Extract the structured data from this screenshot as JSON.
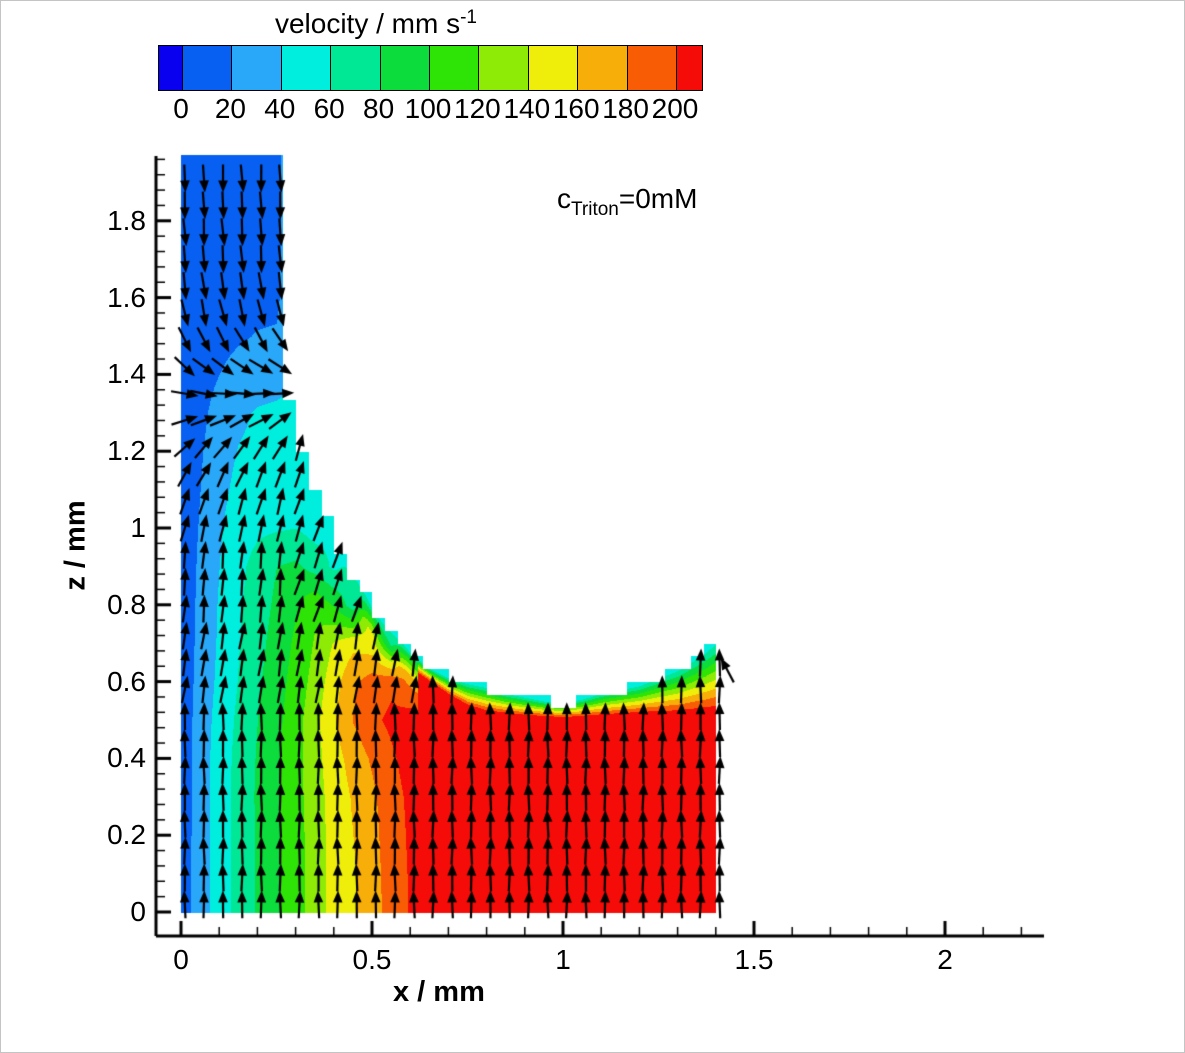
{
  "colorbar": {
    "title_main": "velocity / mm s",
    "title_sup": "-1",
    "tick_labels": [
      "0",
      "20",
      "40",
      "60",
      "80",
      "100",
      "120",
      "140",
      "160",
      "180",
      "200"
    ],
    "levels": [
      0,
      20,
      40,
      60,
      80,
      100,
      120,
      140,
      160,
      180,
      200
    ],
    "band_colors": [
      "#0a00f0",
      "#0760f2",
      "#29a7f8",
      "#00eede",
      "#00e795",
      "#0cdc3c",
      "#2ee407",
      "#8eeb05",
      "#eeee0a",
      "#f8ae08",
      "#f85d05",
      "#f50c08"
    ]
  },
  "axes": {
    "x_label": "x / mm",
    "y_label": "z / mm",
    "x_ticks": [
      {
        "v": 0,
        "label": "0"
      },
      {
        "v": 0.5,
        "label": "0.5"
      },
      {
        "v": 1,
        "label": "1"
      },
      {
        "v": 1.5,
        "label": "1.5"
      },
      {
        "v": 2,
        "label": "2"
      }
    ],
    "y_ticks": [
      {
        "v": 0,
        "label": "0"
      },
      {
        "v": 0.2,
        "label": "0.2"
      },
      {
        "v": 0.4,
        "label": "0.4"
      },
      {
        "v": 0.6,
        "label": "0.6"
      },
      {
        "v": 0.8,
        "label": "0.8"
      },
      {
        "v": 1,
        "label": "1"
      },
      {
        "v": 1.2,
        "label": "1.2"
      },
      {
        "v": 1.4,
        "label": "1.4"
      },
      {
        "v": 1.6,
        "label": "1.6"
      },
      {
        "v": 1.8,
        "label": "1.8"
      }
    ],
    "x_minor_step": 0.1,
    "y_minor_step": 0.04,
    "x_range": [
      -0.065,
      2.26
    ],
    "z_range": [
      -0.062,
      1.97
    ]
  },
  "annotation": {
    "base": "c",
    "sub": "Triton",
    "rest": "=0mM"
  },
  "chart_data": {
    "type": "heatmap",
    "subtype": "filled-contour-with-uniform-length-quiver",
    "title": "velocity / mm s^-1",
    "xlabel": "x / mm",
    "ylabel": "z / mm",
    "contour_levels": [
      0,
      20,
      40,
      60,
      80,
      100,
      120,
      140,
      160,
      180,
      200
    ],
    "legend_position": "top-horizontal-colorbar",
    "data_region": {
      "x_min": 0,
      "x_max": 1.4,
      "z_min": 0,
      "column_x_max": 0.28,
      "column_z_top": 1.97
    },
    "surface_top": [
      [
        0.28,
        1.36
      ],
      [
        0.3,
        1.28
      ],
      [
        0.32,
        1.2
      ],
      [
        0.35,
        1.1
      ],
      [
        0.38,
        1.03
      ],
      [
        0.4,
        0.98
      ],
      [
        0.43,
        0.92
      ],
      [
        0.45,
        0.88
      ],
      [
        0.48,
        0.83
      ],
      [
        0.5,
        0.79
      ],
      [
        0.53,
        0.75
      ],
      [
        0.55,
        0.73
      ],
      [
        0.58,
        0.7
      ],
      [
        0.6,
        0.675
      ],
      [
        0.65,
        0.635
      ],
      [
        0.7,
        0.61
      ],
      [
        0.75,
        0.595
      ],
      [
        0.8,
        0.585
      ],
      [
        0.85,
        0.57
      ],
      [
        0.9,
        0.56
      ],
      [
        0.95,
        0.55
      ],
      [
        1.0,
        0.545
      ],
      [
        1.05,
        0.555
      ],
      [
        1.1,
        0.57
      ],
      [
        1.15,
        0.58
      ],
      [
        1.2,
        0.59
      ],
      [
        1.25,
        0.61
      ],
      [
        1.3,
        0.63
      ],
      [
        1.34,
        0.655
      ],
      [
        1.37,
        0.675
      ],
      [
        1.4,
        0.7
      ]
    ],
    "red_core_top": [
      [
        0.62,
        0.62
      ],
      [
        0.65,
        0.6
      ],
      [
        0.7,
        0.565
      ],
      [
        0.75,
        0.535
      ],
      [
        0.8,
        0.52
      ],
      [
        0.9,
        0.51
      ],
      [
        1.0,
        0.505
      ],
      [
        1.1,
        0.51
      ],
      [
        1.2,
        0.515
      ],
      [
        1.3,
        0.515
      ],
      [
        1.4,
        0.52
      ]
    ],
    "magnitude_grid": {
      "x": [
        0,
        0.05,
        0.1,
        0.15,
        0.2,
        0.25,
        0.3,
        0.35,
        0.4,
        0.45,
        0.5,
        0.55,
        0.6,
        0.7,
        0.8,
        0.9,
        1.0,
        1.1,
        1.2,
        1.3,
        1.4
      ],
      "z": [
        0,
        0.1,
        0.2,
        0.3,
        0.4,
        0.5,
        0.6,
        0.7,
        0.8,
        0.9,
        1.0,
        1.1,
        1.2,
        1.3,
        1.4,
        1.5,
        1.6,
        1.8,
        1.97
      ],
      "v_mm_per_s": [
        [
          10,
          30,
          50,
          67,
          82,
          97,
          112,
          130,
          148,
          158,
          172,
          188,
          202,
          216,
          216,
          216,
          216,
          216,
          216,
          216,
          216
        ],
        [
          10,
          30,
          50,
          67,
          82,
          97,
          112,
          130,
          148,
          158,
          172,
          190,
          202,
          216,
          216,
          216,
          216,
          216,
          216,
          216,
          216
        ],
        [
          9,
          30,
          50,
          67,
          82,
          97,
          112,
          130,
          148,
          160,
          174,
          191,
          203,
          216,
          216,
          216,
          216,
          216,
          216,
          216,
          216
        ],
        [
          9,
          30,
          50,
          67,
          83,
          98,
          113,
          131,
          149,
          162,
          176,
          193,
          204,
          216,
          216,
          216,
          216,
          216,
          216,
          216,
          216
        ],
        [
          8,
          30,
          50,
          66,
          82,
          97,
          113,
          133,
          152,
          168,
          183,
          197,
          208,
          216,
          216,
          216,
          216,
          216,
          216,
          216,
          216
        ],
        [
          8,
          29,
          48,
          64,
          80,
          95,
          112,
          134,
          158,
          181,
          196,
          204,
          212,
          216,
          214,
          210,
          205,
          208,
          211,
          212,
          210
        ],
        [
          8,
          27,
          45,
          61,
          77,
          92,
          108,
          128,
          152,
          176,
          190,
          196,
          175,
          130,
          null,
          null,
          null,
          null,
          null,
          145,
          95
        ],
        [
          7,
          26,
          43,
          59,
          74,
          88,
          104,
          122,
          142,
          155,
          148,
          90,
          null,
          null,
          null,
          null,
          null,
          null,
          null,
          null,
          null
        ],
        [
          7,
          25,
          42,
          57,
          71,
          84,
          98,
          116,
          98,
          68,
          null,
          null,
          null,
          null,
          null,
          null,
          null,
          null,
          null,
          null,
          null
        ],
        [
          6,
          24,
          40,
          55,
          68,
          80,
          84,
          72,
          56,
          null,
          null,
          null,
          null,
          null,
          null,
          null,
          null,
          null,
          null,
          null,
          null
        ],
        [
          6,
          22,
          38,
          50,
          56,
          58,
          60,
          52,
          null,
          null,
          null,
          null,
          null,
          null,
          null,
          null,
          null,
          null,
          null,
          null,
          null
        ],
        [
          5,
          20,
          35,
          45,
          50,
          52,
          48,
          null,
          null,
          null,
          null,
          null,
          null,
          null,
          null,
          null,
          null,
          null,
          null,
          null,
          null
        ],
        [
          5,
          18,
          32,
          41,
          45,
          46,
          44,
          null,
          null,
          null,
          null,
          null,
          null,
          null,
          null,
          null,
          null,
          null,
          null,
          null,
          null
        ],
        [
          5,
          15,
          28,
          36,
          42,
          44,
          null,
          null,
          null,
          null,
          null,
          null,
          null,
          null,
          null,
          null,
          null,
          null,
          null,
          null,
          null
        ],
        [
          4,
          12,
          20,
          26,
          30,
          32,
          null,
          null,
          null,
          null,
          null,
          null,
          null,
          null,
          null,
          null,
          null,
          null,
          null,
          null,
          null
        ],
        [
          4,
          10,
          15,
          18,
          21,
          22,
          null,
          null,
          null,
          null,
          null,
          null,
          null,
          null,
          null,
          null,
          null,
          null,
          null,
          null,
          null
        ],
        [
          3,
          8,
          12,
          14,
          15,
          16,
          null,
          null,
          null,
          null,
          null,
          null,
          null,
          null,
          null,
          null,
          null,
          null,
          null,
          null,
          null
        ],
        [
          3,
          7,
          10,
          12,
          13,
          13,
          null,
          null,
          null,
          null,
          null,
          null,
          null,
          null,
          null,
          null,
          null,
          null,
          null,
          null,
          null
        ],
        [
          3,
          7,
          10,
          12,
          13,
          13,
          null,
          null,
          null,
          null,
          null,
          null,
          null,
          null,
          null,
          null,
          null,
          null,
          null,
          null,
          null
        ]
      ]
    },
    "vectors": {
      "style": "uniform-length, direction only",
      "x0": 0.01,
      "dx": 0.05,
      "nx": 29,
      "z0": 0.02,
      "dz": 0.07,
      "nz": 28,
      "length_mm": 0.073,
      "angle_profile_descending_column_deg": [
        [
          0.95,
          80
        ],
        [
          1.05,
          72
        ],
        [
          1.13,
          62
        ],
        [
          1.21,
          45
        ],
        [
          1.26,
          25
        ],
        [
          1.31,
          5
        ],
        [
          1.36,
          -15
        ],
        [
          1.42,
          -40
        ],
        [
          1.48,
          -62
        ],
        [
          1.56,
          -78
        ],
        [
          1.7,
          -86
        ],
        [
          1.98,
          -88
        ]
      ],
      "default_angle_deg": 90,
      "plume_flank_angle_deg": 72,
      "special_vectors": [
        {
          "x": 1.43,
          "z": 0.63,
          "angle_deg": 118
        }
      ]
    },
    "flow_description": "Rising plume: uniform upward flow (>200 mm/s, red) for x=0.6-1.4 below the free surface at z~0.55-0.7; velocity decreases toward the wall at x=0; a descending counterflow column (0-40 mm/s, blue) occupies x=0-0.28 above z~1.3, turning from downward to horizontal-right to upward between z=1.5 and z=1.0."
  }
}
